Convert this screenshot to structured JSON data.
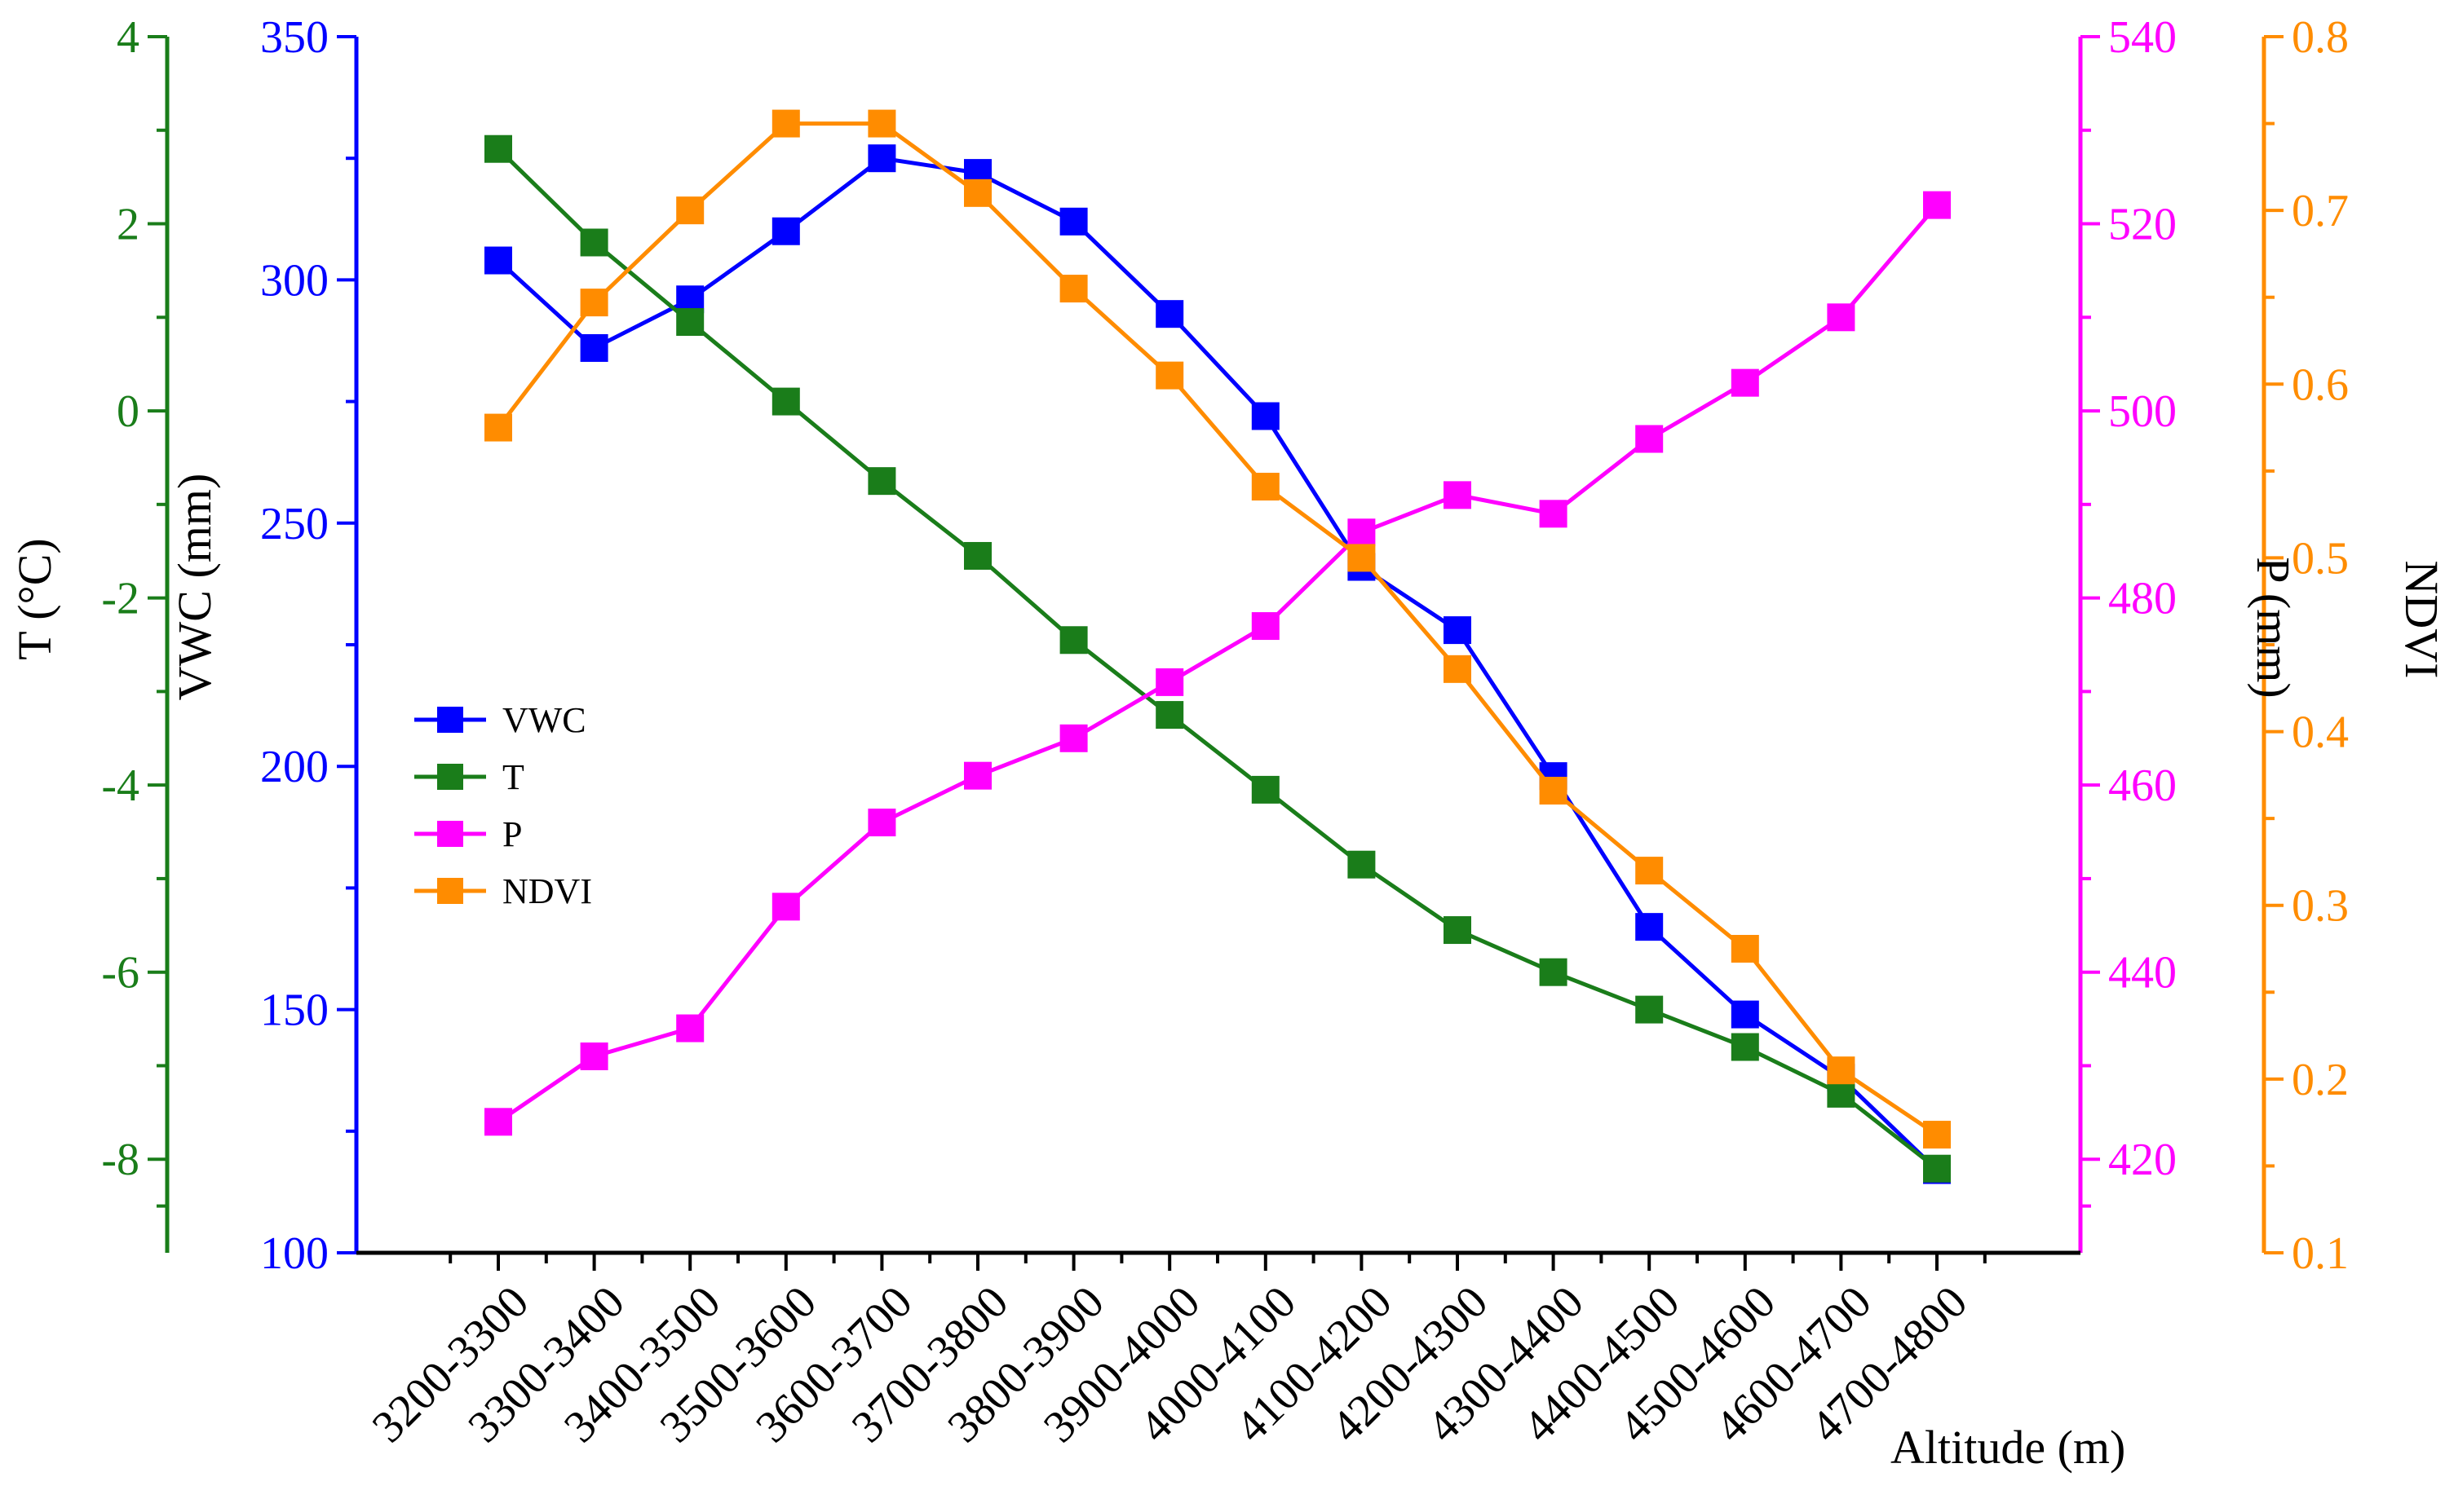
{
  "chart_data": {
    "type": "line",
    "categories": [
      "3200-3300",
      "3300-3400",
      "3400-3500",
      "3500-3600",
      "3600-3700",
      "3700-3800",
      "3800-3900",
      "3900-4000",
      "4000-4100",
      "4100-4200",
      "4200-4300",
      "4300-4400",
      "4400-4500",
      "4500-4600",
      "4600-4700",
      "4700-4800"
    ],
    "xlabel": "Altitude (m)",
    "series": [
      {
        "name": "VWC",
        "axis": "vwc",
        "color": "#0000ff",
        "values": [
          304,
          286,
          296,
          310,
          325,
          322,
          312,
          293,
          272,
          241,
          228,
          198,
          167,
          149,
          136,
          117
        ]
      },
      {
        "name": "T",
        "axis": "t",
        "color": "#1a7d1a",
        "values": [
          2.8,
          1.8,
          0.95,
          0.1,
          -0.75,
          -1.55,
          -2.45,
          -3.25,
          -4.05,
          -4.85,
          -5.55,
          -6.0,
          -6.4,
          -6.8,
          -7.3,
          -8.1
        ]
      },
      {
        "name": "P",
        "axis": "p",
        "color": "#ff00ff",
        "values": [
          424,
          431,
          434,
          447,
          456,
          461,
          465,
          471,
          477,
          487,
          491,
          489,
          497,
          503,
          510,
          522
        ]
      },
      {
        "name": "NDVI",
        "axis": "ndvi",
        "color": "#ff8c00",
        "values": [
          0.575,
          0.647,
          0.7,
          0.75,
          0.75,
          0.71,
          0.655,
          0.605,
          0.541,
          0.5,
          0.436,
          0.366,
          0.32,
          0.275,
          0.205,
          0.168
        ]
      }
    ],
    "axes": {
      "t": {
        "label": "T (°C)",
        "color": "#1a7d1a",
        "ylim": [
          -9,
          4
        ],
        "ticks": [
          "4",
          "2",
          "0",
          "-2",
          "-4",
          "-6",
          "-8"
        ]
      },
      "vwc": {
        "label": "VWC (mm)",
        "color": "#0000ff",
        "ylim": [
          100,
          350
        ],
        "ticks": [
          "350",
          "300",
          "250",
          "200",
          "150",
          "100"
        ]
      },
      "p": {
        "label": "P (mm)",
        "color": "#ff00ff",
        "ylim": [
          410,
          540
        ],
        "ticks": [
          "540",
          "520",
          "500",
          "480",
          "460",
          "440",
          "420"
        ]
      },
      "ndvi": {
        "label": "NDVI",
        "color": "#ff8c00",
        "ylim": [
          0.1,
          0.8
        ],
        "ticks": [
          "0.8",
          "0.7",
          "0.6",
          "0.5",
          "0.4",
          "0.3",
          "0.2",
          "0.1"
        ]
      }
    },
    "legend": {
      "position": "left-middle",
      "entries": [
        "VWC",
        "T",
        "P",
        "NDVI"
      ]
    }
  }
}
